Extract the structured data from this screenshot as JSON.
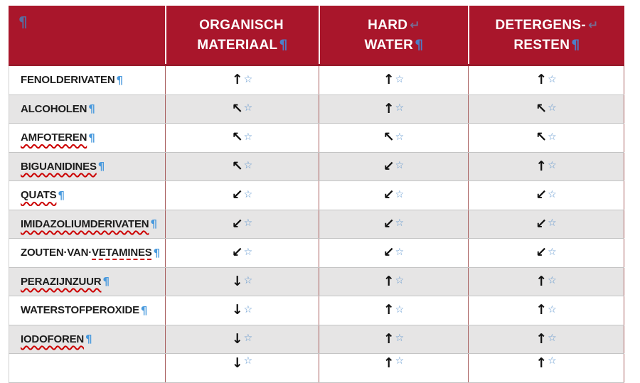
{
  "table": {
    "header": {
      "corner_pilcrow": "¶",
      "columns": [
        {
          "line1": "ORGANISCH",
          "break1": "",
          "line2": "MATERIAAL",
          "pilcrow": "¶"
        },
        {
          "line1": "HARD",
          "break1": "↵",
          "line2": "WATER",
          "pilcrow": "¶"
        },
        {
          "line1": "DETERGENS-",
          "break1": "↵",
          "line2": "RESTEN",
          "pilcrow": "¶"
        }
      ]
    },
    "glyphs": {
      "pilcrow": "¶",
      "star": "☆"
    },
    "rows": [
      {
        "shade": "white",
        "parts": [
          {
            "text": "FENOLDERIVATEN",
            "u": "none"
          }
        ],
        "cells": [
          "↑",
          "↑",
          "↑"
        ]
      },
      {
        "shade": "gray",
        "parts": [
          {
            "text": "ALCOHOLEN",
            "u": "none"
          }
        ],
        "cells": [
          "↖",
          "↑",
          "↖"
        ]
      },
      {
        "shade": "white",
        "parts": [
          {
            "text": "AMFOTEREN",
            "u": "wavy"
          }
        ],
        "cells": [
          "↖",
          "↖",
          "↖"
        ]
      },
      {
        "shade": "gray",
        "parts": [
          {
            "text": "BIGUANIDINES",
            "u": "wavy"
          }
        ],
        "cells": [
          "↖",
          "↙",
          "↑"
        ]
      },
      {
        "shade": "white",
        "parts": [
          {
            "text": "QUATS",
            "u": "wavy"
          }
        ],
        "cells": [
          "↙",
          "↙",
          "↙"
        ]
      },
      {
        "shade": "gray",
        "parts": [
          {
            "text": "IMIDAZOLIUMDERIVATEN",
            "u": "wavy"
          }
        ],
        "cells": [
          "↙",
          "↙",
          "↙"
        ]
      },
      {
        "shade": "white",
        "parts": [
          {
            "text": "ZOUTEN·VAN·",
            "u": "none"
          },
          {
            "text": "VETAMINES",
            "u": "dashed"
          }
        ],
        "cells": [
          "↙",
          "↙",
          "↙"
        ]
      },
      {
        "shade": "gray",
        "parts": [
          {
            "text": "PERAZIJNZUUR",
            "u": "wavy"
          }
        ],
        "cells": [
          "↓",
          "↑",
          "↑"
        ]
      },
      {
        "shade": "white",
        "parts": [
          {
            "text": "WATERSTOFPEROXIDE",
            "u": "none"
          }
        ],
        "cells": [
          "↓",
          "↑",
          "↑"
        ]
      },
      {
        "shade": "gray",
        "parts": [
          {
            "text": "IODOFOREN",
            "u": "wavy"
          }
        ],
        "cells": [
          "↓",
          "↑",
          "↑"
        ]
      },
      {
        "shade": "white",
        "parts": [],
        "cells": [
          "↓",
          "↑",
          "↑"
        ]
      }
    ],
    "colors": {
      "header_red": "#A9162B",
      "header_border_red": "#9A1B2C",
      "row_alt_gray": "#E6E5E5",
      "row_border_gray": "#C4C4C4",
      "column_border_red": "#A85D5D",
      "star_blue": "#5F96CE",
      "pilcrow_blue": "#4899DD",
      "spellcheck_red": "#CC0000",
      "text_black": "#1C1C1C"
    }
  }
}
